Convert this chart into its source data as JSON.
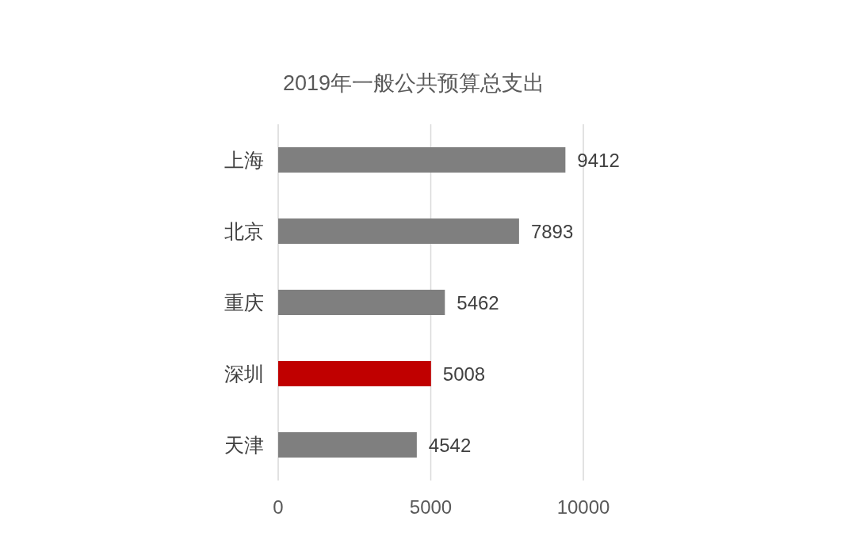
{
  "chart_data": {
    "type": "bar",
    "orientation": "horizontal",
    "title": "2019年一般公共预算总支出",
    "categories": [
      "上海",
      "北京",
      "重庆",
      "深圳",
      "天津"
    ],
    "values": [
      9412,
      7893,
      5462,
      5008,
      4542
    ],
    "colors": [
      "#7f7f7f",
      "#7f7f7f",
      "#7f7f7f",
      "#c00000",
      "#7f7f7f"
    ],
    "xlim": [
      0,
      10000
    ],
    "xticks": [
      0,
      5000,
      10000
    ],
    "grid": "x",
    "data_labels": true
  }
}
